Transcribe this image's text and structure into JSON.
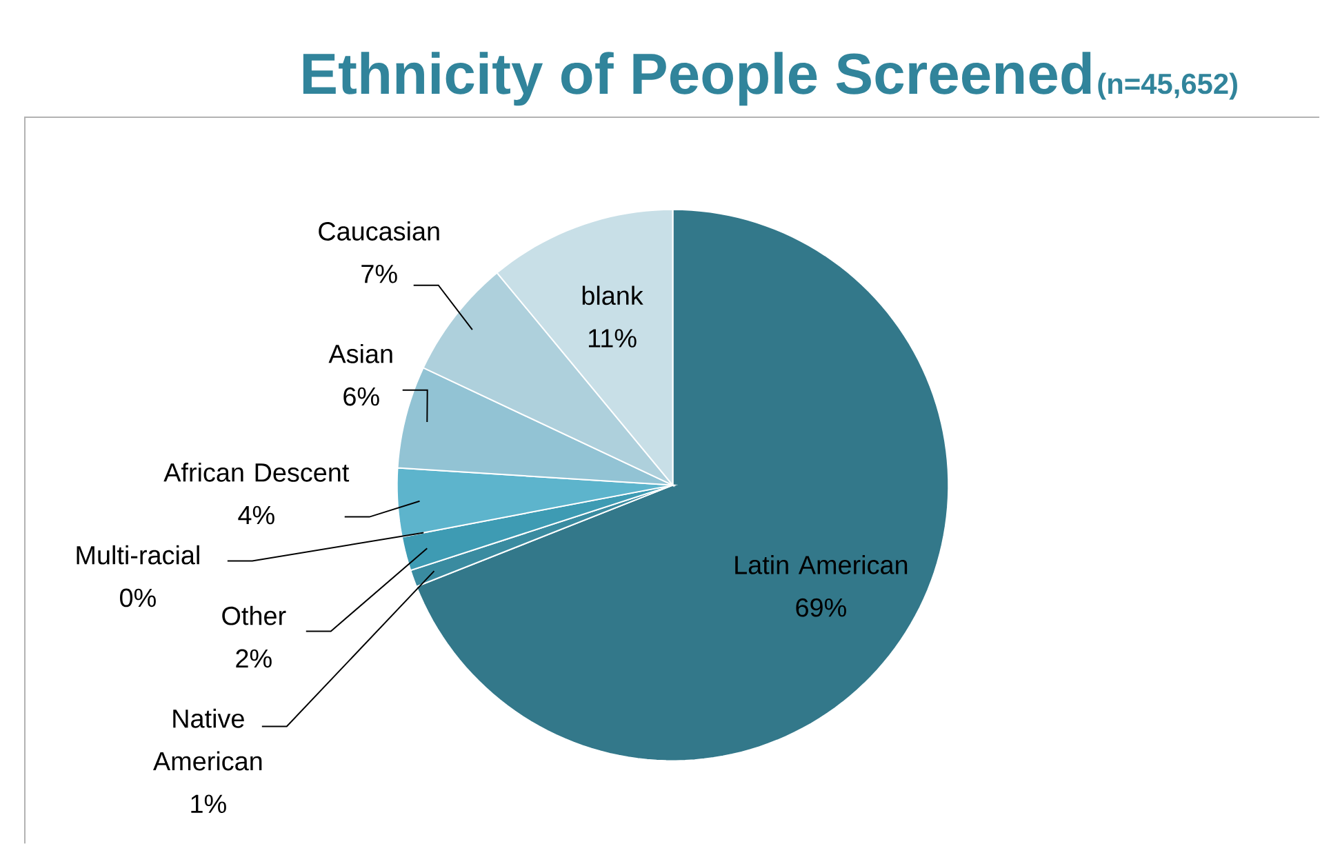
{
  "chart_data": {
    "type": "pie",
    "title": "Ethnicity of People Screened",
    "subtitle": "(n=45,652)",
    "categories": [
      "Latin American",
      "Native American",
      "Other",
      "Multi-racial",
      "African Descent",
      "Asian",
      "Caucasian",
      "blank"
    ],
    "values": [
      69,
      1,
      2,
      0,
      4,
      6,
      7,
      11
    ],
    "value_labels": [
      "69%",
      "1%",
      "2%",
      "0%",
      "4%",
      "6%",
      "7%",
      "11%"
    ],
    "colors": [
      "#33788a",
      "#3a8ba0",
      "#3e9bb3",
      "#4aa6bf",
      "#5db4cc",
      "#92c3d4",
      "#aed0dc",
      "#c8dfe7"
    ]
  }
}
